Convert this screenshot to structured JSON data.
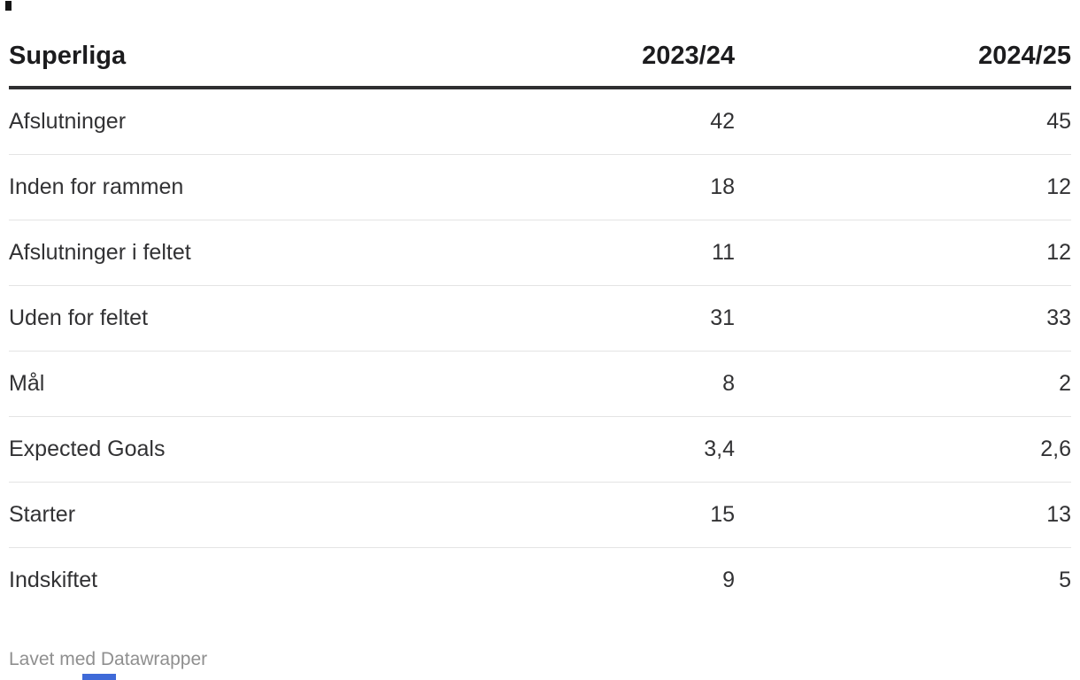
{
  "table": {
    "title": "Superliga",
    "columns": [
      "2023/24",
      "2024/25"
    ],
    "rows": [
      {
        "label": "Afslutninger",
        "values": [
          "42",
          "45"
        ]
      },
      {
        "label": "Inden for rammen",
        "values": [
          "18",
          "12"
        ]
      },
      {
        "label": "Afslutninger i feltet",
        "values": [
          "11",
          "12"
        ]
      },
      {
        "label": "Uden for feltet",
        "values": [
          "31",
          "33"
        ]
      },
      {
        "label": "Mål",
        "values": [
          "8",
          "2"
        ]
      },
      {
        "label": "Expected Goals",
        "values": [
          "3,4",
          "2,6"
        ]
      },
      {
        "label": "Starter",
        "values": [
          "15",
          "13"
        ]
      },
      {
        "label": "Indskiftet",
        "values": [
          "9",
          "5"
        ]
      }
    ]
  },
  "footer": {
    "attribution": "Lavet med Datawrapper"
  },
  "chart_data": {
    "type": "table",
    "title": "Superliga",
    "categories": [
      "Afslutninger",
      "Inden for rammen",
      "Afslutninger i feltet",
      "Uden for feltet",
      "Mål",
      "Expected Goals",
      "Starter",
      "Indskiftet"
    ],
    "series": [
      {
        "name": "2023/24",
        "values": [
          42,
          18,
          11,
          31,
          8,
          3.4,
          15,
          9
        ]
      },
      {
        "name": "2024/25",
        "values": [
          45,
          12,
          12,
          33,
          2,
          2.6,
          13,
          5
        ]
      }
    ],
    "annotations": [
      "Lavet med Datawrapper"
    ],
    "layout": {
      "value_alignment": "right",
      "header_rule": true,
      "row_separators": true
    }
  },
  "colors": {
    "background": "#ffffff",
    "header_text": "#1c1c1e",
    "body_text": "#323234",
    "header_rule": "#2f2f31",
    "row_separator": "#e4e4e4",
    "footer_text": "#8f8f8f",
    "edge_fragment_dark": "#141414",
    "edge_fragment_blue": "#3f6ad8"
  }
}
